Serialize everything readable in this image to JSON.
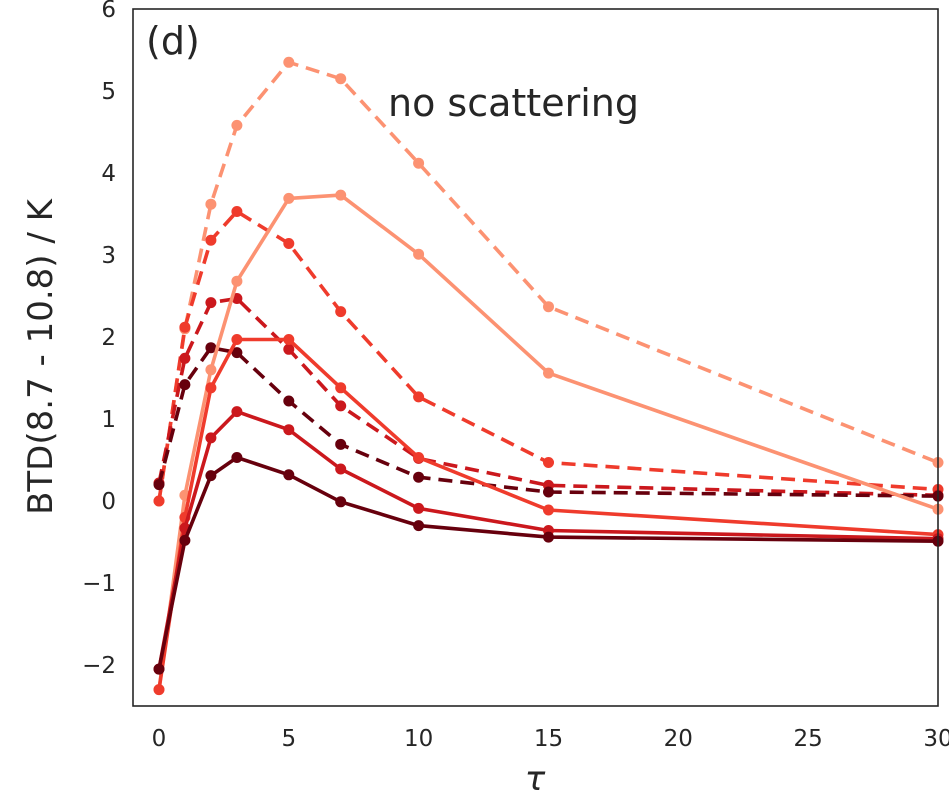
{
  "chart_data": {
    "type": "line",
    "panel_label": "(d)",
    "annotation": "no scattering",
    "xlabel": "τ",
    "ylabel": "BTD(8.7 - 10.8) / K",
    "xlim": [
      -1,
      30
    ],
    "ylim": [
      -2.5,
      6
    ],
    "xticks": [
      0,
      5,
      10,
      15,
      20,
      25,
      30
    ],
    "yticks": [
      -2,
      -1,
      0,
      1,
      2,
      3,
      4,
      5,
      6
    ],
    "ytick_labels": [
      "−2",
      "−1",
      "0",
      "1",
      "2",
      "3",
      "4",
      "5",
      "6"
    ],
    "grid": false,
    "x": [
      0,
      1,
      2,
      3,
      5,
      7,
      10,
      15,
      30
    ],
    "series": [
      {
        "color": "#fc9272",
        "dash": true,
        "values": [
          0.0,
          2.1,
          3.62,
          4.58,
          5.35,
          5.15,
          4.12,
          2.37,
          0.47
        ]
      },
      {
        "color": "#ef3b2c",
        "dash": true,
        "values": [
          0.0,
          2.12,
          3.18,
          3.53,
          3.14,
          2.31,
          1.27,
          0.47,
          0.14
        ]
      },
      {
        "color": "#cb181d",
        "dash": true,
        "values": [
          0.22,
          1.74,
          2.42,
          2.47,
          1.85,
          1.16,
          0.52,
          0.19,
          0.07
        ]
      },
      {
        "color": "#67000d",
        "dash": true,
        "values": [
          0.2,
          1.42,
          1.87,
          1.81,
          1.22,
          0.69,
          0.29,
          0.11,
          0.06
        ]
      },
      {
        "color": "#fc9272",
        "dash": false,
        "values": [
          -2.3,
          0.07,
          1.6,
          2.68,
          3.69,
          3.73,
          3.01,
          1.56,
          -0.1
        ]
      },
      {
        "color": "#ef3b2c",
        "dash": false,
        "values": [
          -2.3,
          -0.2,
          1.38,
          1.97,
          1.97,
          1.38,
          0.53,
          -0.11,
          -0.41
        ]
      },
      {
        "color": "#cb181d",
        "dash": false,
        "values": [
          -2.05,
          -0.33,
          0.77,
          1.09,
          0.87,
          0.39,
          -0.09,
          -0.36,
          -0.46
        ]
      },
      {
        "color": "#67000d",
        "dash": false,
        "values": [
          -2.05,
          -0.48,
          0.31,
          0.53,
          0.32,
          -0.01,
          -0.3,
          -0.44,
          -0.49
        ]
      }
    ]
  }
}
